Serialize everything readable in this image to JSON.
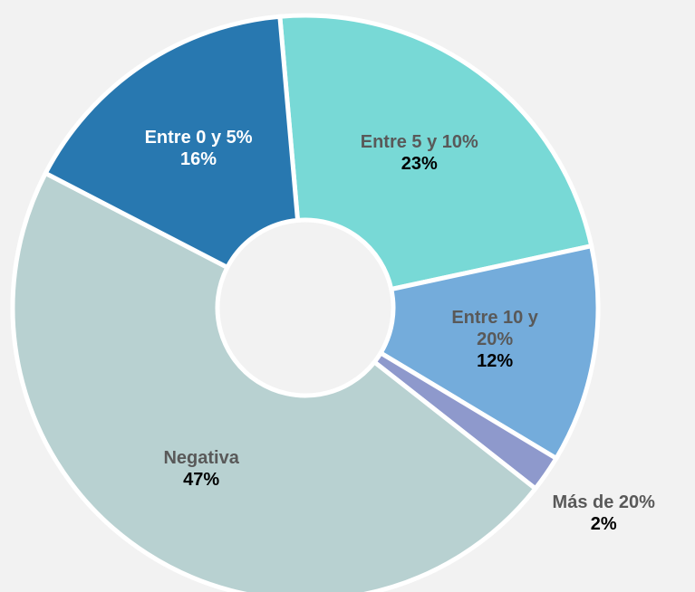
{
  "chart_data": {
    "type": "donut",
    "categories": [
      "Entre 5 y 10%",
      "Entre 10 y 20%",
      "Más de 20%",
      "Negativa",
      "Entre 0 y 5%"
    ],
    "values": [
      23,
      12,
      2,
      47,
      16
    ],
    "value_labels": [
      "23%",
      "12%",
      "2%",
      "47%",
      "16%"
    ],
    "colors": [
      "#78d9d6",
      "#74acdb",
      "#8e99cc",
      "#b8d1d1",
      "#2878b0"
    ]
  }
}
